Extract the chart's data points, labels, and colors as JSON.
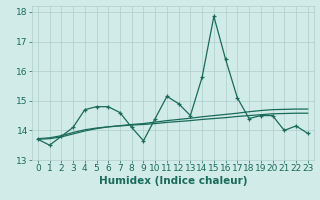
{
  "x": [
    0,
    1,
    2,
    3,
    4,
    5,
    6,
    7,
    8,
    9,
    10,
    11,
    12,
    13,
    14,
    15,
    16,
    17,
    18,
    19,
    20,
    21,
    22,
    23
  ],
  "line1": [
    13.7,
    13.5,
    13.8,
    14.1,
    14.7,
    14.8,
    14.8,
    14.6,
    14.1,
    13.65,
    14.4,
    15.15,
    14.9,
    14.5,
    15.8,
    17.85,
    16.4,
    15.1,
    14.4,
    14.5,
    14.5,
    14.0,
    14.15,
    13.9
  ],
  "line2": [
    13.72,
    13.75,
    13.82,
    13.93,
    14.02,
    14.08,
    14.12,
    14.15,
    14.18,
    14.2,
    14.23,
    14.27,
    14.3,
    14.33,
    14.37,
    14.4,
    14.43,
    14.47,
    14.5,
    14.53,
    14.56,
    14.57,
    14.58,
    14.58
  ],
  "line3": [
    13.7,
    13.72,
    13.78,
    13.88,
    13.98,
    14.06,
    14.12,
    14.16,
    14.2,
    14.23,
    14.28,
    14.33,
    14.37,
    14.41,
    14.46,
    14.5,
    14.54,
    14.58,
    14.63,
    14.67,
    14.7,
    14.71,
    14.72,
    14.72
  ],
  "line_color": "#1a6b5a",
  "bg_color": "#d1ebe8",
  "grid_color": "#aecfcc",
  "xlabel": "Humidex (Indice chaleur)",
  "ylim": [
    13,
    18.2
  ],
  "xlim": [
    -0.5,
    23.5
  ],
  "yticks": [
    13,
    14,
    15,
    16,
    17,
    18
  ],
  "xticks": [
    0,
    1,
    2,
    3,
    4,
    5,
    6,
    7,
    8,
    9,
    10,
    11,
    12,
    13,
    14,
    15,
    16,
    17,
    18,
    19,
    20,
    21,
    22,
    23
  ],
  "tick_fontsize": 6.5,
  "xlabel_fontsize": 7.5
}
